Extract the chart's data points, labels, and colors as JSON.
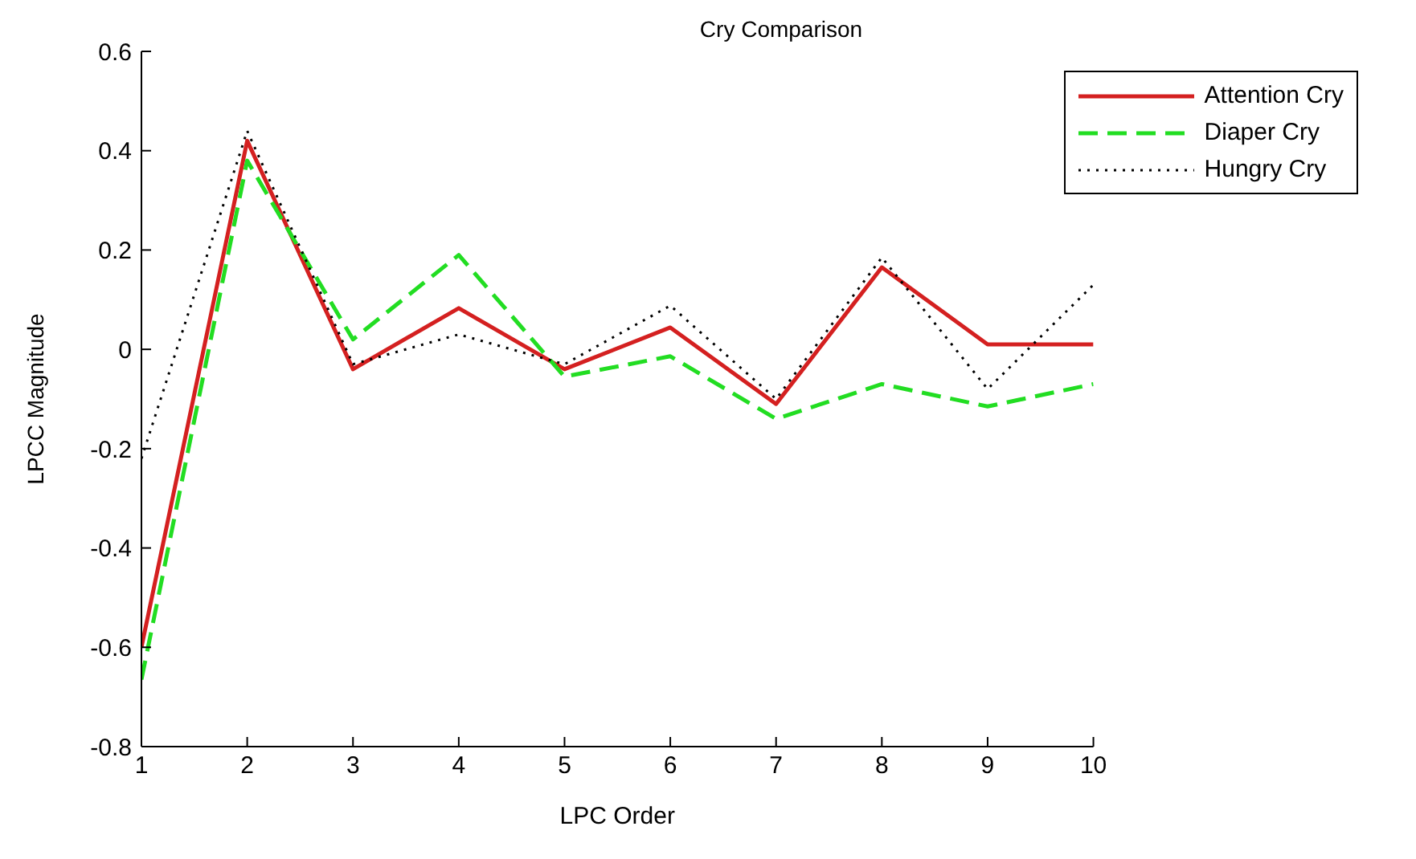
{
  "chart_data": {
    "type": "line",
    "title": "Cry Comparison",
    "xlabel": "LPC Order",
    "ylabel": "LPCC Magnitude",
    "x": [
      1,
      2,
      3,
      4,
      5,
      6,
      7,
      8,
      9,
      10
    ],
    "xlim": [
      1,
      10
    ],
    "xticks": [
      1,
      2,
      3,
      4,
      5,
      6,
      7,
      8,
      9,
      10
    ],
    "ylim": [
      -0.8,
      0.6
    ],
    "yticks": [
      -0.8,
      -0.6,
      -0.4,
      -0.2,
      0,
      0.2,
      0.4,
      0.6
    ],
    "grid": false,
    "legend": "top right",
    "marker": "none",
    "series": [
      {
        "name": "Attention Cry",
        "color": "#d42020",
        "line_style": "solid",
        "values": [
          -0.6,
          0.42,
          -0.04,
          0.083,
          -0.04,
          0.044,
          -0.11,
          0.165,
          0.01,
          0.01
        ]
      },
      {
        "name": "Diaper Cry",
        "color": "#22dd22",
        "line_style": "dashed",
        "values": [
          -0.665,
          0.38,
          0.02,
          0.19,
          -0.055,
          -0.014,
          -0.14,
          -0.07,
          -0.115,
          -0.07
        ]
      },
      {
        "name": "Hungry Cry",
        "color": "#000000",
        "line_style": "dotted",
        "values": [
          -0.22,
          0.44,
          -0.03,
          0.03,
          -0.03,
          0.088,
          -0.1,
          0.185,
          -0.08,
          0.13
        ]
      }
    ]
  }
}
